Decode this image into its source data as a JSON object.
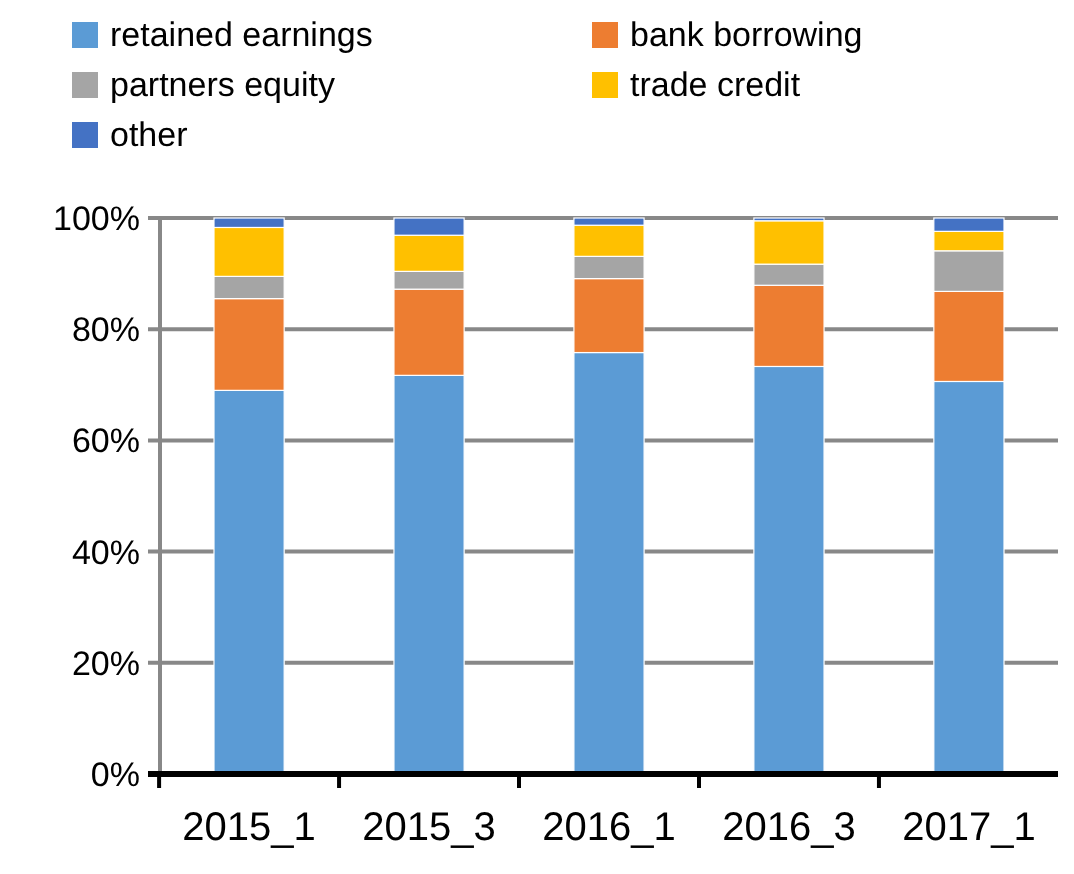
{
  "chart_data": {
    "type": "bar",
    "stacked": true,
    "categories": [
      "2015_1",
      "2015_3",
      "2016_1",
      "2016_3",
      "2017_1"
    ],
    "series": [
      {
        "name": "retained earnings",
        "color": "#5b9bd5",
        "values": [
          69,
          71.7,
          75.8,
          73.3,
          70.6
        ]
      },
      {
        "name": "bank borrowing",
        "color": "#ed7d31",
        "values": [
          16.5,
          15.5,
          13.3,
          14.6,
          16.2
        ]
      },
      {
        "name": "partners equity",
        "color": "#a5a5a5",
        "values": [
          4,
          3.2,
          4,
          3.8,
          7.3
        ]
      },
      {
        "name": "trade credit",
        "color": "#ffc000",
        "values": [
          8.8,
          6.5,
          5.6,
          7.8,
          3.5
        ]
      },
      {
        "name": "other",
        "color": "#4472c4",
        "values": [
          1.7,
          3.1,
          1.3,
          0.5,
          2.4
        ]
      }
    ],
    "ylim": [
      0,
      100
    ],
    "yticks": [
      {
        "value": 0,
        "label": "0%"
      },
      {
        "value": 20,
        "label": "20%"
      },
      {
        "value": 40,
        "label": "40%"
      },
      {
        "value": 60,
        "label": "60%"
      },
      {
        "value": 80,
        "label": "80%"
      },
      {
        "value": 100,
        "label": "100%"
      }
    ],
    "grid": "y",
    "legend": "top"
  }
}
